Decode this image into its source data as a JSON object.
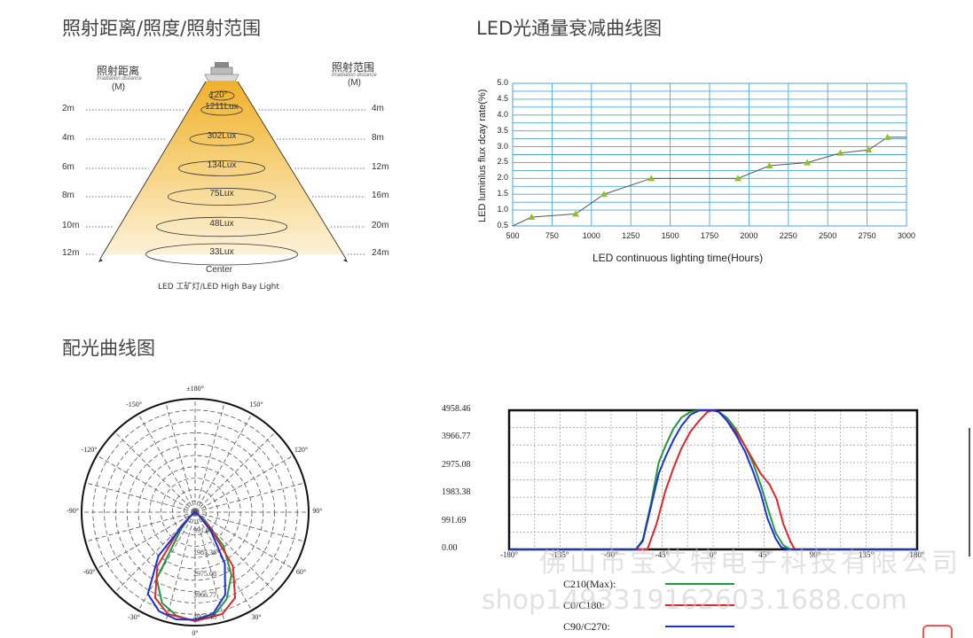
{
  "titles": {
    "illumination": "照射距离/照度/照射范围",
    "decay": "LED光通量衰减曲线图",
    "distribution": "配光曲线图"
  },
  "cone": {
    "left_header": "照射距离",
    "left_header_en": "Irradiation distance",
    "left_unit": "(M)",
    "right_header": "照射范围",
    "right_header_en": "Irradiation distance",
    "right_unit": "(M)",
    "angle": "120°",
    "distances": [
      "2m",
      "4m",
      "6m",
      "8m",
      "10m",
      "12m"
    ],
    "lux": [
      "1211Lux",
      "302Lux",
      "134Lux",
      "75Lux",
      "48Lux",
      "33Lux"
    ],
    "ranges": [
      "4m",
      "8m",
      "12m",
      "16m",
      "20m",
      "24m"
    ],
    "center": "Center",
    "caption": "LED 工矿灯/LED High Bay Light"
  },
  "chart_data": [
    {
      "type": "line",
      "title": "LED光通量衰减曲线图",
      "xlabel": "LED continuous lighting time(Hours)",
      "ylabel": "LED luminlus flux dcay rate(%)",
      "xlim": [
        500,
        3000
      ],
      "ylim": [
        0.5,
        5.0
      ],
      "xticks": [
        "500",
        "750",
        "1000",
        "1250",
        "1500",
        "1750",
        "2000",
        "2250",
        "2500",
        "2750",
        "3000"
      ],
      "yticks": [
        "0.5",
        "1.0",
        "1.5",
        "2.0",
        "2.5",
        "3.0",
        "3.5",
        "4.0",
        "4.5",
        "5.0"
      ],
      "grid": true,
      "series": [
        {
          "x": [
            500,
            620,
            900,
            1080,
            1380,
            1930,
            2130,
            2370,
            2580,
            2760,
            2880,
            3000
          ],
          "y": [
            0.5,
            0.78,
            0.88,
            1.5,
            2.0,
            2.0,
            2.4,
            2.5,
            2.8,
            2.9,
            3.3,
            3.3
          ],
          "marker_x": [
            620,
            900,
            1080,
            1380,
            1930,
            2130,
            2370,
            2580,
            2760,
            2880
          ],
          "color": "#555555",
          "marker_color": "#8dc21f"
        }
      ]
    },
    {
      "type": "polar",
      "angle_labels": [
        "±180°",
        "150°",
        "120°",
        "90°",
        "60°",
        "30°",
        "0°",
        "-30°",
        "-60°",
        "-90°",
        "-120°",
        "-150°"
      ],
      "radial_labels": [
        "991.69",
        "1983.38",
        "2975.08",
        "3966.77",
        "4958.46"
      ],
      "rmax": 4958.46,
      "series": [
        {
          "name": "C210(Max):",
          "color": "#1e9a3e",
          "theta": [
            -70,
            -50,
            -40,
            -30,
            -20,
            -10,
            0,
            10,
            20,
            30,
            40,
            50,
            70
          ],
          "r": [
            0,
            250,
            1000,
            3500,
            4400,
            4800,
            4958,
            4800,
            4200,
            3300,
            2000,
            600,
            0
          ]
        },
        {
          "name": "C0/C180:",
          "color": "#e0262a",
          "theta": [
            -70,
            -55,
            -45,
            -35,
            -25,
            -15,
            0,
            15,
            25,
            35,
            45,
            55,
            70
          ],
          "r": [
            0,
            150,
            900,
            3000,
            4300,
            4800,
            4958,
            4800,
            4300,
            3000,
            900,
            150,
            0
          ]
        },
        {
          "name": "C90/C270:",
          "color": "#1d2fd6",
          "theta": [
            -70,
            -50,
            -40,
            -30,
            -20,
            -10,
            0,
            10,
            20,
            30,
            40,
            50,
            70
          ],
          "r": [
            0,
            350,
            2600,
            4300,
            4800,
            4958,
            4900,
            4700,
            4000,
            2700,
            1100,
            200,
            0
          ]
        }
      ]
    },
    {
      "type": "line",
      "x": [
        -180,
        180
      ],
      "xlim": [
        -180,
        180
      ],
      "ylim": [
        0,
        4958.46
      ],
      "xticks": [
        "-180°",
        "-135°",
        "-90°",
        "-45°",
        "0°",
        "45°",
        "90°",
        "135°",
        "180°"
      ],
      "yticks": [
        "0.00",
        "991.69",
        "1983.38",
        "2975.08",
        "3966.77",
        "4958.46"
      ],
      "grid": true,
      "series": [
        {
          "name": "C210(Max):",
          "color": "#1e9a3e",
          "x": [
            -180,
            -68,
            -62,
            -55,
            -48,
            -42,
            -35,
            -28,
            -20,
            -12,
            -5,
            0,
            5,
            12,
            20,
            28,
            35,
            42,
            48,
            55,
            62,
            68,
            180
          ],
          "y": [
            0,
            0,
            350,
            1600,
            3100,
            3700,
            4300,
            4700,
            4900,
            4958,
            4958,
            4958,
            4900,
            4700,
            4300,
            3700,
            3100,
            2300,
            1500,
            600,
            150,
            0,
            0
          ]
        },
        {
          "name": "C0/C180:",
          "color": "#e0262a",
          "x": [
            -180,
            -58,
            -50,
            -42,
            -35,
            -28,
            -20,
            -12,
            -5,
            0,
            5,
            12,
            20,
            28,
            35,
            42,
            50,
            56,
            62,
            68,
            72,
            78,
            180
          ],
          "y": [
            0,
            0,
            900,
            2100,
            2900,
            3600,
            4200,
            4600,
            4900,
            4958,
            4900,
            4600,
            4200,
            3700,
            3200,
            2700,
            2300,
            1800,
            900,
            300,
            0,
            0,
            0
          ]
        },
        {
          "name": "C90/C270:",
          "color": "#1d2fd6",
          "x": [
            -180,
            -68,
            -62,
            -55,
            -48,
            -42,
            -35,
            -28,
            -20,
            -12,
            -5,
            0,
            5,
            12,
            20,
            28,
            35,
            42,
            48,
            55,
            60,
            66,
            180
          ],
          "y": [
            0,
            0,
            300,
            1500,
            2700,
            3300,
            3900,
            4400,
            4800,
            4958,
            4958,
            4958,
            4900,
            4600,
            4100,
            3500,
            2800,
            2000,
            1100,
            400,
            80,
            0,
            0
          ]
        }
      ]
    }
  ],
  "legend": {
    "items": [
      {
        "name": "C210(Max):",
        "color": "#1e9a3e"
      },
      {
        "name": "C0/C180:",
        "color": "#e0262a"
      },
      {
        "name": "C90/C270:",
        "color": "#1d2fd6"
      }
    ]
  },
  "watermark": {
    "company": "佛山市宝艾特电子科技有限公司",
    "url": "shop1493319162603.1688.com"
  }
}
